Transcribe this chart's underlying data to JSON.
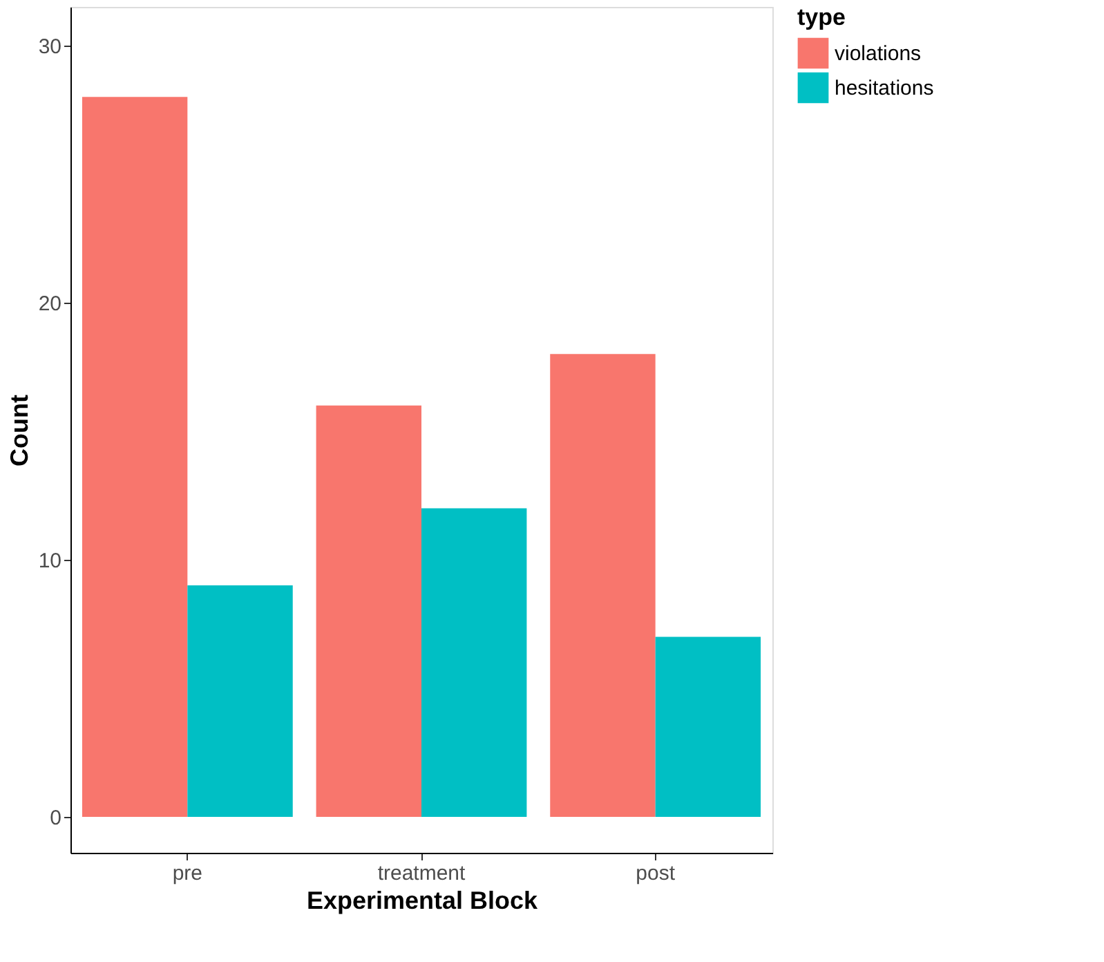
{
  "chart_data": {
    "type": "bar",
    "xlabel": "Experimental Block",
    "ylabel": "Count",
    "legend_title": "type",
    "categories": [
      "pre",
      "treatment",
      "post"
    ],
    "series": [
      {
        "name": "violations",
        "color": "#f8766d",
        "values": [
          28,
          16,
          18
        ]
      },
      {
        "name": "hesitations",
        "color": "#00bfc4",
        "values": [
          9,
          12,
          7
        ]
      }
    ],
    "ylim": [
      -1.4,
      31.5
    ],
    "yticks": [
      0,
      10,
      20,
      30
    ],
    "grid": false,
    "legend": "right"
  }
}
